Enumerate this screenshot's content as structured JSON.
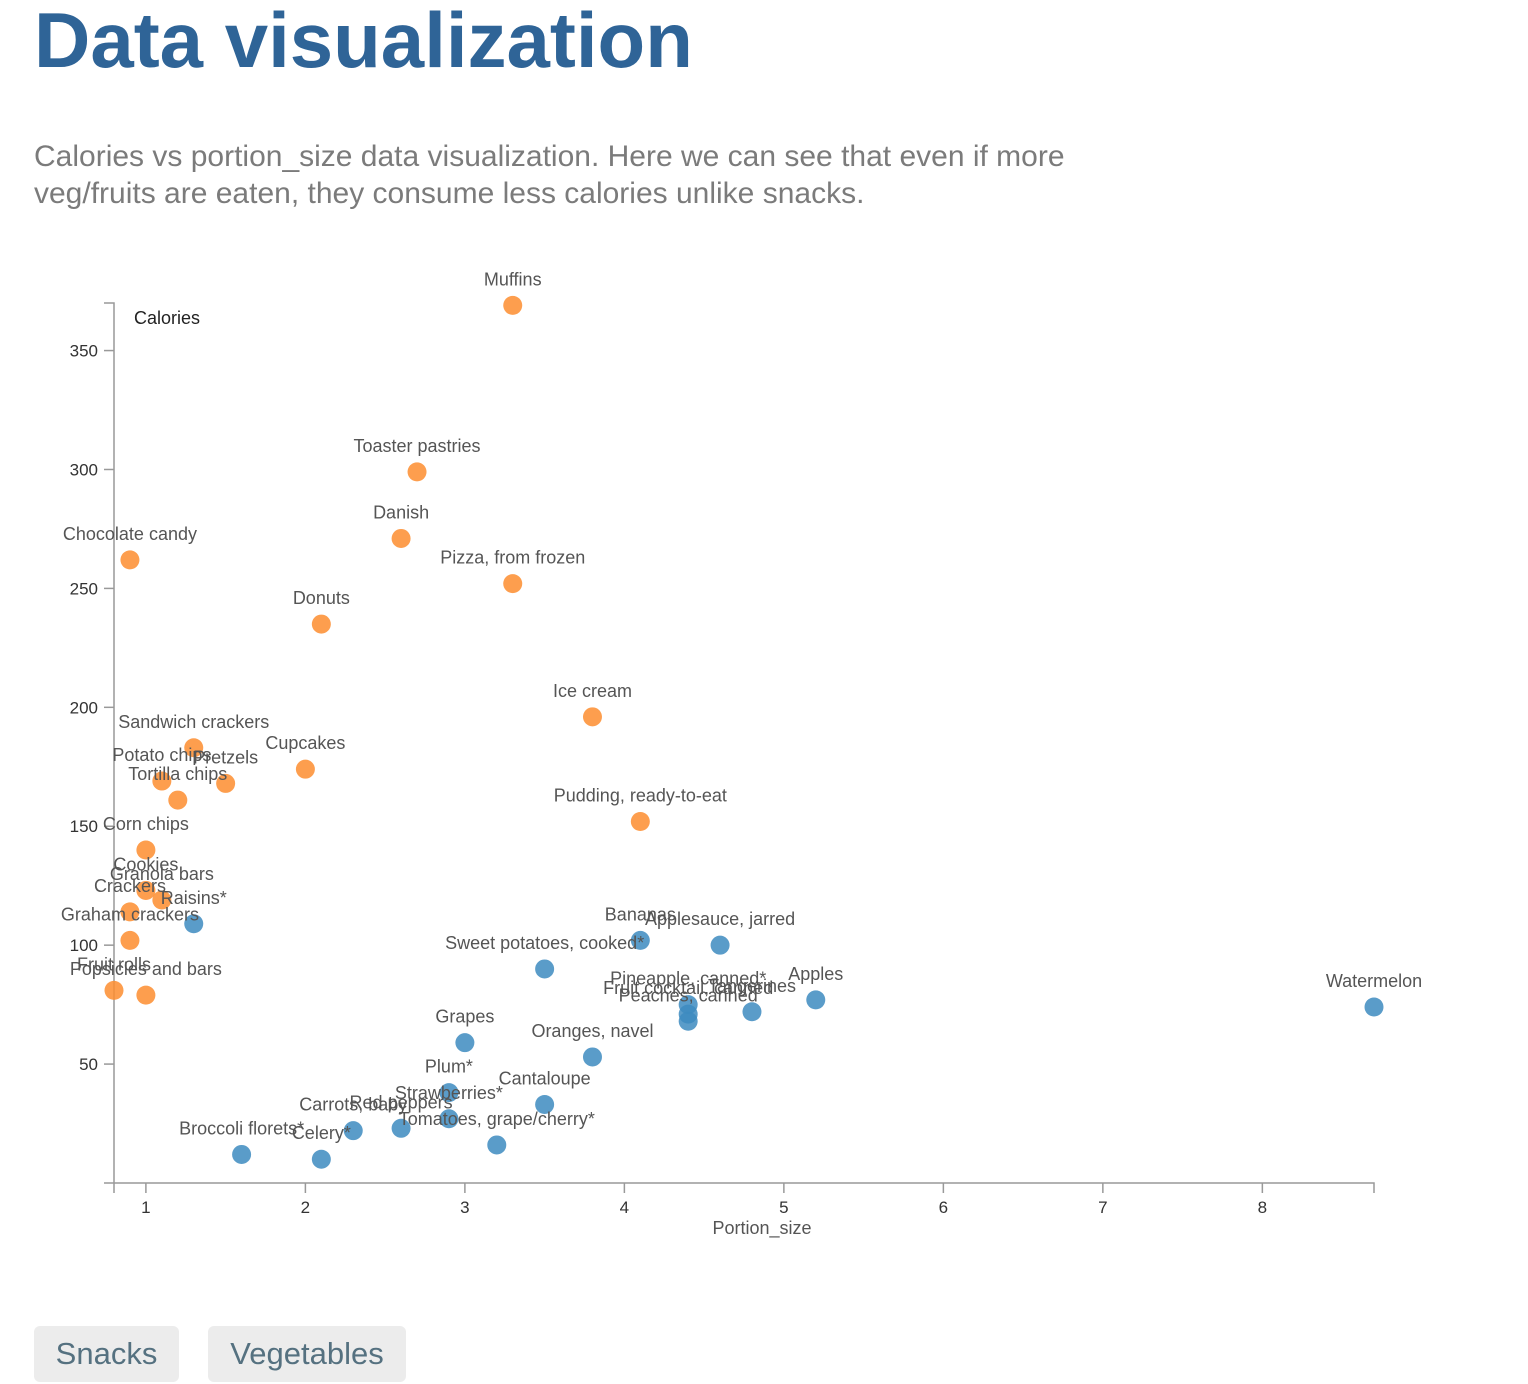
{
  "page": {
    "title": "Data visualization",
    "description": "Calories vs portion_size data visualization. Here we can see that even if more veg/fruits are eaten, they consume less calories unlike snacks."
  },
  "buttons": {
    "snacks": "Snacks",
    "vegetables": "Vegetables"
  },
  "colors": {
    "snacks": "#fd8d2f",
    "vegetables": "#3d8bc0",
    "title": "#2f6497",
    "axis": "#999999"
  },
  "chart_data": {
    "type": "scatter",
    "xlabel": "Portion_size",
    "ylabel": "Calories",
    "xlim": [
      0.8,
      8.7
    ],
    "ylim": [
      0,
      370
    ],
    "xticks": [
      1,
      2,
      3,
      4,
      5,
      6,
      7,
      8
    ],
    "yticks": [
      50,
      100,
      150,
      200,
      250,
      300,
      350
    ],
    "grid": false,
    "series": [
      {
        "name": "Snacks",
        "color": "#fd8d2f",
        "points": [
          {
            "label": "Muffins",
            "x": 3.3,
            "y": 369
          },
          {
            "label": "Toaster pastries",
            "x": 2.7,
            "y": 299
          },
          {
            "label": "Danish",
            "x": 2.6,
            "y": 271
          },
          {
            "label": "Chocolate  candy",
            "x": 0.9,
            "y": 262
          },
          {
            "label": "Pizza, from frozen",
            "x": 3.3,
            "y": 252
          },
          {
            "label": "Donuts",
            "x": 2.1,
            "y": 235
          },
          {
            "label": "Ice cream",
            "x": 3.8,
            "y": 196
          },
          {
            "label": "Sandwich crackers",
            "x": 1.3,
            "y": 183
          },
          {
            "label": "Cupcakes",
            "x": 2.0,
            "y": 174
          },
          {
            "label": "Potato chips",
            "x": 1.1,
            "y": 169
          },
          {
            "label": "Pretzels",
            "x": 1.5,
            "y": 168
          },
          {
            "label": "Tortilla chips",
            "x": 1.2,
            "y": 161
          },
          {
            "label": "Pudding, ready-to-eat",
            "x": 4.1,
            "y": 152
          },
          {
            "label": "Corn chips",
            "x": 1.0,
            "y": 140
          },
          {
            "label": "Cookies",
            "x": 1.0,
            "y": 123
          },
          {
            "label": "Granola  bars",
            "x": 1.1,
            "y": 119
          },
          {
            "label": "Crackers",
            "x": 0.9,
            "y": 114
          },
          {
            "label": "Graham crackers",
            "x": 0.9,
            "y": 102
          },
          {
            "label": "Fruit rolls",
            "x": 0.8,
            "y": 81
          },
          {
            "label": "Popsicles and bars",
            "x": 1.0,
            "y": 79
          }
        ]
      },
      {
        "name": "Vegetables",
        "color": "#3d8bc0",
        "points": [
          {
            "label": "Raisins*",
            "x": 1.3,
            "y": 109
          },
          {
            "label": "Bananas",
            "x": 4.1,
            "y": 102
          },
          {
            "label": "Applesauce, jarred",
            "x": 4.6,
            "y": 100
          },
          {
            "label": "Sweet potatoes, cooked*",
            "x": 3.5,
            "y": 90
          },
          {
            "label": "Apples",
            "x": 5.2,
            "y": 77
          },
          {
            "label": "Watermelon",
            "x": 8.7,
            "y": 74
          },
          {
            "label": "Pineapple, canned*",
            "x": 4.4,
            "y": 75
          },
          {
            "label": "Fruit cocktail, canned",
            "x": 4.4,
            "y": 71
          },
          {
            "label": "Tangerines",
            "x": 4.8,
            "y": 72
          },
          {
            "label": "Peaches, canned",
            "x": 4.4,
            "y": 68
          },
          {
            "label": "Grapes",
            "x": 3.0,
            "y": 59
          },
          {
            "label": "Oranges, navel",
            "x": 3.8,
            "y": 53
          },
          {
            "label": "Plum*",
            "x": 2.9,
            "y": 38
          },
          {
            "label": "Cantaloupe",
            "x": 3.5,
            "y": 33
          },
          {
            "label": "Strawberries*",
            "x": 2.9,
            "y": 27
          },
          {
            "label": "Red peppers",
            "x": 2.6,
            "y": 23
          },
          {
            "label": "Carrots, baby",
            "x": 2.3,
            "y": 22
          },
          {
            "label": "Tomatoes, grape/cherry*",
            "x": 3.2,
            "y": 16
          },
          {
            "label": "Broccoli florets*",
            "x": 1.6,
            "y": 12
          },
          {
            "label": "Celery*",
            "x": 2.1,
            "y": 10
          }
        ]
      }
    ]
  }
}
